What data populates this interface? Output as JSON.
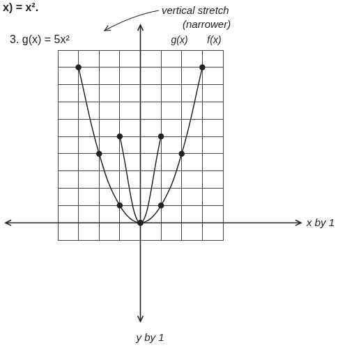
{
  "chart_data": {
    "type": "line",
    "title": "3. g(x) = 5x²",
    "annotations": [
      "x) = x².",
      "vertical stretch",
      "(narrower)"
    ],
    "x_label": "x by 1",
    "y_label": "y by 1",
    "series": [
      {
        "name": "g(x)",
        "color": "#222222",
        "marker": "circle",
        "x": [
          -1,
          0,
          1
        ],
        "values": [
          5,
          0,
          5
        ]
      },
      {
        "name": "f(x)",
        "color": "#222222",
        "marker": "circle",
        "x": [
          -3,
          -2,
          -1,
          0,
          1,
          2,
          3
        ],
        "values": [
          9,
          4,
          1,
          0,
          1,
          4,
          9
        ]
      }
    ],
    "xlim": [
      -4,
      4
    ],
    "xticks": [
      -4,
      -3,
      -2,
      -1,
      0,
      1,
      2,
      3,
      4
    ],
    "ylim": [
      -1,
      10
    ],
    "yticks": [
      -1,
      0,
      1,
      2,
      3,
      4,
      5,
      6,
      7,
      8,
      9,
      10
    ],
    "grid": true,
    "tick_labels": false
  }
}
